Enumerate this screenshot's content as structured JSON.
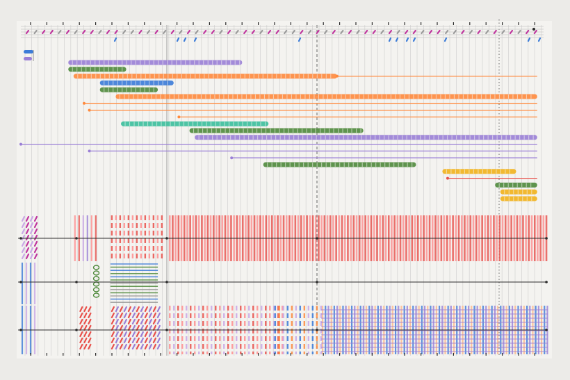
{
  "artwork": {
    "kind": "hand-drawn marker score on paper",
    "palette": {
      "paper": "#ecebe8",
      "sheet": "#f4f3f0",
      "guide": "#cdcccb",
      "ink": "#2b2b2b",
      "purple": "#9a7fd6",
      "green": "#4f8a3c",
      "orange": "#ff8a3d",
      "blue": "#3b7bd8",
      "teal": "#3bbf9c",
      "yellow": "#f2b21c",
      "red": "#e8504a",
      "magenta": "#c0359e",
      "pink": "#ff8f8f",
      "peach": "#ffb98a",
      "lavender": "#c9a8e6",
      "grey": "#9a9a9a"
    },
    "top_dot_row": {
      "colors": [
        "magenta",
        "grey",
        "magenta",
        "magenta",
        "grey",
        "magenta",
        "grey",
        "magenta",
        "magenta",
        "grey",
        "magenta",
        "magenta",
        "grey",
        "grey",
        "magenta",
        "grey",
        "magenta",
        "grey",
        "magenta",
        "grey"
      ],
      "blue_dots_count": 12
    },
    "timeline_bars": [
      {
        "color": "purple",
        "style": "thick",
        "start": 0.09,
        "end": 0.42,
        "row": 0
      },
      {
        "color": "green",
        "style": "thick",
        "start": 0.09,
        "end": 0.2,
        "row": 1
      },
      {
        "color": "orange",
        "style": "thick",
        "start": 0.1,
        "end": 0.6,
        "row": 2
      },
      {
        "color": "orange",
        "style": "thin",
        "start": 0.6,
        "end": 0.98,
        "row": 2
      },
      {
        "color": "blue",
        "style": "thick",
        "start": 0.15,
        "end": 0.29,
        "row": 3
      },
      {
        "color": "green",
        "style": "thick",
        "start": 0.15,
        "end": 0.26,
        "row": 4
      },
      {
        "color": "orange",
        "style": "thick",
        "start": 0.18,
        "end": 0.98,
        "row": 5
      },
      {
        "color": "orange",
        "style": "thin",
        "start": 0.12,
        "end": 0.98,
        "row": 6
      },
      {
        "color": "orange",
        "style": "thin",
        "start": 0.13,
        "end": 0.98,
        "row": 7
      },
      {
        "color": "orange",
        "style": "thin",
        "start": 0.3,
        "end": 0.98,
        "row": 8
      },
      {
        "color": "teal",
        "style": "thick",
        "start": 0.19,
        "end": 0.47,
        "row": 9
      },
      {
        "color": "green",
        "style": "thick",
        "start": 0.32,
        "end": 0.65,
        "row": 10
      },
      {
        "color": "purple",
        "style": "thick",
        "start": 0.33,
        "end": 0.98,
        "row": 11
      },
      {
        "color": "purple",
        "style": "thin",
        "start": 0.0,
        "end": 0.98,
        "row": 12
      },
      {
        "color": "purple",
        "style": "thin",
        "start": 0.13,
        "end": 0.98,
        "row": 13
      },
      {
        "color": "purple",
        "style": "thin",
        "start": 0.4,
        "end": 0.98,
        "row": 14
      },
      {
        "color": "green",
        "style": "thick",
        "start": 0.46,
        "end": 0.75,
        "row": 15
      },
      {
        "color": "yellow",
        "style": "thick",
        "start": 0.8,
        "end": 0.94,
        "row": 16
      },
      {
        "color": "red",
        "style": "thin",
        "start": 0.81,
        "end": 0.98,
        "row": 17
      },
      {
        "color": "green",
        "style": "thick",
        "start": 0.9,
        "end": 0.98,
        "row": 18
      },
      {
        "color": "yellow",
        "style": "thick",
        "start": 0.91,
        "end": 0.98,
        "row": 19
      },
      {
        "color": "yellow",
        "style": "thick",
        "start": 0.91,
        "end": 0.98,
        "row": 20
      }
    ],
    "lower_bands": [
      {
        "name": "band-1",
        "blocks": [
          {
            "pattern": "diagonal",
            "colors": [
              "lavender",
              "magenta"
            ],
            "span": [
              0.0,
              0.03
            ]
          },
          {
            "pattern": "stripes",
            "colors": [
              "pink",
              "red",
              "lavender",
              "purple"
            ],
            "span": [
              0.1,
              0.15
            ]
          },
          {
            "pattern": "dashed",
            "colors": [
              "red",
              "pink"
            ],
            "span": [
              0.17,
              0.27
            ]
          },
          {
            "pattern": "dense",
            "colors": [
              "pink",
              "red"
            ],
            "span": [
              0.28,
              1.0
            ]
          }
        ]
      },
      {
        "name": "band-2",
        "blocks": [
          {
            "pattern": "stripes",
            "colors": [
              "blue",
              "lavender"
            ],
            "span": [
              0.0,
              0.03
            ]
          },
          {
            "pattern": "ladder",
            "colors": [
              "grey",
              "green",
              "blue"
            ],
            "span": [
              0.17,
              0.26
            ]
          },
          {
            "pattern": "loops",
            "colors": [
              "green"
            ],
            "span": [
              0.13,
              0.15
            ]
          }
        ]
      },
      {
        "name": "band-3",
        "blocks": [
          {
            "pattern": "stripes",
            "colors": [
              "blue",
              "lavender"
            ],
            "span": [
              0.0,
              0.03
            ]
          },
          {
            "pattern": "diagonal",
            "colors": [
              "red"
            ],
            "span": [
              0.11,
              0.13
            ]
          },
          {
            "pattern": "diagonal",
            "colors": [
              "red",
              "purple"
            ],
            "span": [
              0.17,
              0.26
            ]
          },
          {
            "pattern": "dashed",
            "colors": [
              "pink",
              "lavender",
              "red"
            ],
            "span": [
              0.28,
              0.5
            ]
          },
          {
            "pattern": "dashed",
            "colors": [
              "blue",
              "orange",
              "lavender"
            ],
            "span": [
              0.48,
              0.57
            ]
          },
          {
            "pattern": "crosshatch",
            "colors": [
              "peach",
              "blue",
              "purple"
            ],
            "span": [
              0.57,
              1.0
            ]
          }
        ]
      }
    ]
  }
}
